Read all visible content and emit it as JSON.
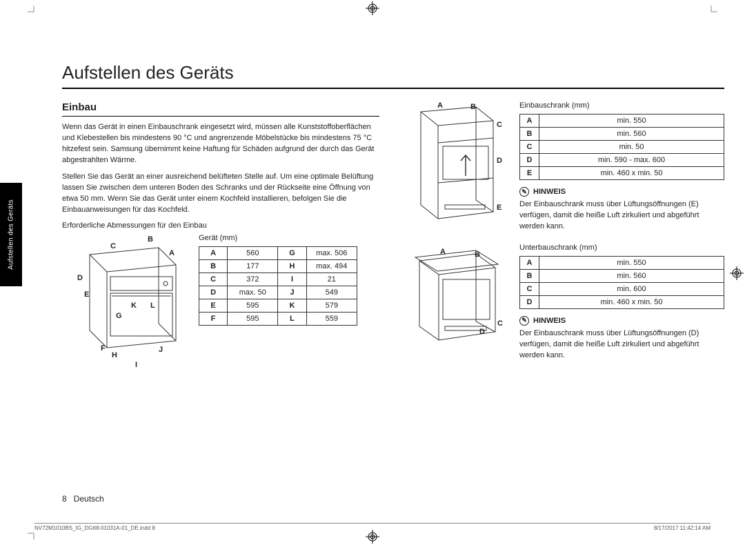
{
  "page": {
    "title": "Aufstellen des Geräts",
    "sideTab": "Aufstellen des Geräts",
    "pageNum": "8",
    "lang": "Deutsch",
    "printFile": "NV72M1010BS_IG_DG68-01031A-01_DE.indd   8",
    "printTime": "8/17/2017   11:42:14 AM"
  },
  "einbau": {
    "heading": "Einbau",
    "p1": "Wenn das Gerät in einen Einbauschrank eingesetzt wird, müssen alle Kunststoffoberflächen und Klebestellen bis mindestens 90 °C und angrenzende Möbelstücke bis mindestens 75 °C hitzefest sein. Samsung übernimmt keine Haftung für Schäden aufgrund der durch das Gerät abgestrahlten Wärme.",
    "p2": "Stellen Sie das Gerät an einer ausreichend belüfteten Stelle auf. Um eine optimale Belüftung lassen Sie zwischen dem unteren Boden des Schranks und der Rückseite eine Öffnung von etwa 50 mm. Wenn Sie das Gerät unter einem Kochfeld installieren, befolgen Sie die Einbauanweisungen für das Kochfeld.",
    "dimHeading": "Erforderliche Abmessungen für den Einbau"
  },
  "deviceTable": {
    "caption": "Gerät (mm)",
    "rows": [
      [
        "A",
        "560",
        "G",
        "max. 506"
      ],
      [
        "B",
        "177",
        "H",
        "max. 494"
      ],
      [
        "C",
        "372",
        "I",
        "21"
      ],
      [
        "D",
        "max. 50",
        "J",
        "549"
      ],
      [
        "E",
        "595",
        "K",
        "579"
      ],
      [
        "F",
        "595",
        "L",
        "559"
      ]
    ]
  },
  "devLabels": {
    "A": "A",
    "B": "B",
    "C": "C",
    "D": "D",
    "E": "E",
    "F": "F",
    "G": "G",
    "H": "H",
    "I": "I",
    "J": "J",
    "K": "K",
    "L": "L"
  },
  "einbauschrank": {
    "caption": "Einbauschrank (mm)",
    "rows": [
      [
        "A",
        "min. 550"
      ],
      [
        "B",
        "min. 560"
      ],
      [
        "C",
        "min. 50"
      ],
      [
        "D",
        "min. 590 - max. 600"
      ],
      [
        "E",
        "min. 460 x min. 50"
      ]
    ],
    "labels": {
      "A": "A",
      "B": "B",
      "C": "C",
      "D": "D",
      "E": "E"
    }
  },
  "hinweis1": {
    "label": "HINWEIS",
    "text": "Der Einbauschrank muss über Lüftungsöffnungen (E) verfügen, damit die heiße Luft zirkuliert und abgeführt werden kann."
  },
  "unterbauschrank": {
    "caption": "Unterbauschrank (mm)",
    "rows": [
      [
        "A",
        "min. 550"
      ],
      [
        "B",
        "min. 560"
      ],
      [
        "C",
        "min. 600"
      ],
      [
        "D",
        "min. 460 x min. 50"
      ]
    ],
    "labels": {
      "A": "A",
      "B": "B",
      "C": "C",
      "D": "D"
    }
  },
  "hinweis2": {
    "label": "HINWEIS",
    "text": "Der Einbauschrank muss über Lüftungsöffnungen (D) verfügen, damit die heiße Luft zirkuliert und abgeführt werden kann."
  },
  "colors": {
    "text": "#222222",
    "line": "#333333",
    "bg": "#ffffff",
    "sideTabBg": "#000000",
    "sideTabText": "#ffffff"
  }
}
